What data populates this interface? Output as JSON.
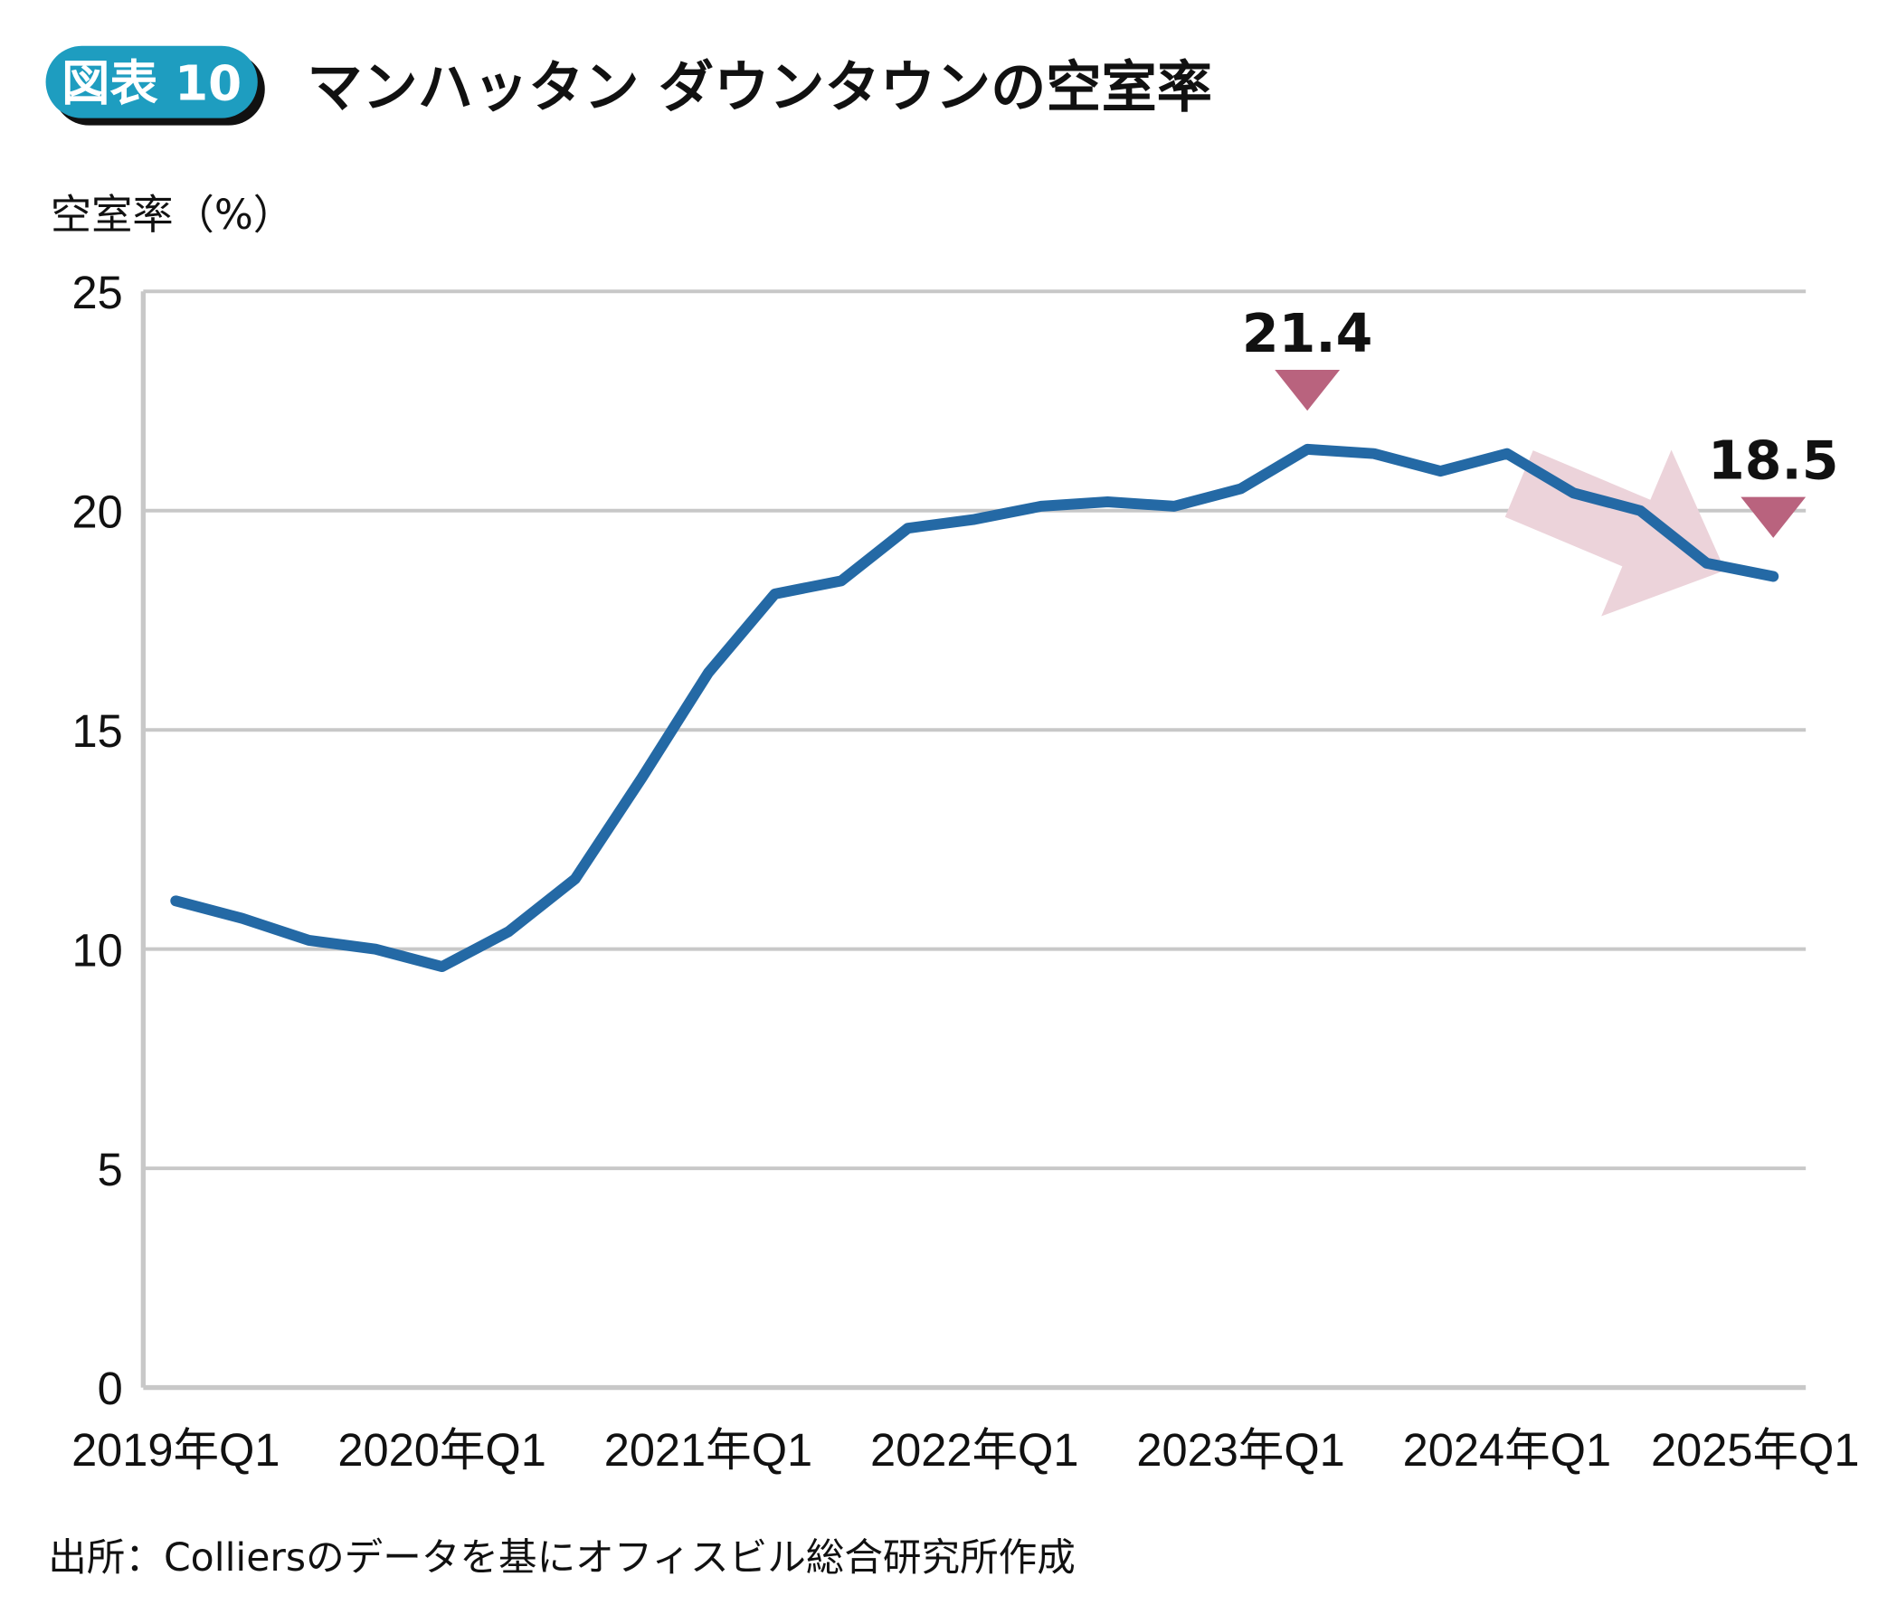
{
  "header": {
    "badge": "図表 10",
    "title": "マンハッタン ダウンタウンの空室率"
  },
  "footer": {
    "source": "出所：Colliersのデータを基にオフィスビル総合研究所作成"
  },
  "colors": {
    "badge": "#1e9dc0",
    "line": "#2469a5",
    "marker": "#b9637e",
    "arrow": "#ecd3da",
    "grid": "#c8c8c8"
  },
  "chart_data": {
    "type": "line",
    "title": "マンハッタン ダウンタウンの空室率",
    "ylabel": "空室率（%）",
    "xlabel": "",
    "ylim": [
      0,
      25
    ],
    "yticks": [
      "0",
      "5",
      "10",
      "15",
      "20",
      "25"
    ],
    "ytick_values": [
      0,
      5,
      10,
      15,
      20,
      25
    ],
    "xtick_labels": [
      "2019年Q1",
      "2020年Q1",
      "2021年Q1",
      "2022年Q1",
      "2023年Q1",
      "2024年Q1",
      "2025年Q1"
    ],
    "xtick_index": [
      0,
      4,
      8,
      12,
      16,
      20,
      24
    ],
    "x": [
      "2019Q1",
      "2019Q2",
      "2019Q3",
      "2019Q4",
      "2020Q1",
      "2020Q2",
      "2020Q3",
      "2020Q4",
      "2021Q1",
      "2021Q2",
      "2021Q3",
      "2021Q4",
      "2022Q1",
      "2022Q2",
      "2022Q3",
      "2022Q4",
      "2023Q1",
      "2023Q2",
      "2023Q3",
      "2023Q4",
      "2024Q1",
      "2024Q2",
      "2024Q3",
      "2024Q4",
      "2025Q1"
    ],
    "series": [
      {
        "name": "空室率",
        "values": [
          11.1,
          10.7,
          10.2,
          10.0,
          9.6,
          10.4,
          11.6,
          13.9,
          16.3,
          18.1,
          18.4,
          19.6,
          19.8,
          20.1,
          20.2,
          20.1,
          20.5,
          21.4,
          21.3,
          20.9,
          21.3,
          20.4,
          20.0,
          18.8,
          18.5
        ]
      }
    ],
    "annotations": [
      {
        "index": 17,
        "label": "21.4"
      },
      {
        "index": 24,
        "label": "18.5"
      }
    ],
    "trend_arrow": {
      "from_index": 20,
      "to_index": 24,
      "direction": "down"
    },
    "grid": true,
    "legend": "none"
  }
}
